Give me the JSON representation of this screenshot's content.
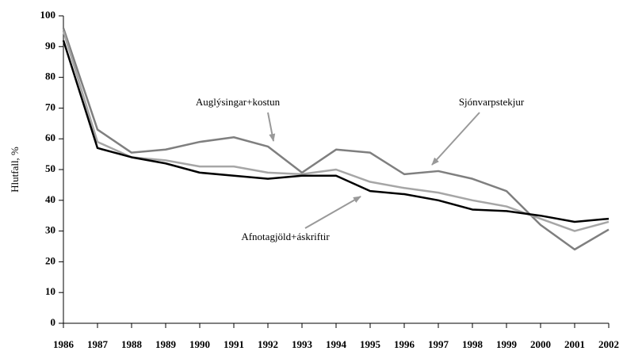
{
  "chart_data": {
    "type": "line",
    "y_label": "Hlutfall, %",
    "categories": [
      "1986",
      "1987",
      "1988",
      "1989",
      "1990",
      "1991",
      "1992",
      "1993",
      "1994",
      "1995",
      "1996",
      "1997",
      "1998",
      "1999",
      "2000",
      "2001",
      "2002"
    ],
    "series": [
      {
        "name": "Auglýsingar+kostun",
        "color": "#7f7f7f",
        "values": [
          96,
          63,
          55.5,
          56.5,
          59,
          60.5,
          57.5,
          49,
          56.5,
          55.5,
          48.5,
          49.5,
          47,
          43,
          32,
          24,
          30.5
        ]
      },
      {
        "name": "Sjónvarpstekjur",
        "color": "#a6a6a6",
        "values": [
          95,
          59,
          54,
          53,
          51,
          51,
          49,
          48.5,
          50,
          46,
          44,
          42.5,
          40,
          38,
          34,
          30,
          33
        ]
      },
      {
        "name": "Afnotagjöld+áskriftir",
        "color": "#000000",
        "values": [
          92,
          57,
          54,
          52,
          49,
          48,
          47,
          48,
          48,
          43,
          42,
          40,
          37,
          36.5,
          35,
          33,
          34
        ]
      }
    ],
    "ylim": [
      0,
      100
    ],
    "yticks": [
      0,
      10,
      20,
      30,
      40,
      50,
      60,
      70,
      80,
      90,
      100
    ],
    "grid": false
  }
}
